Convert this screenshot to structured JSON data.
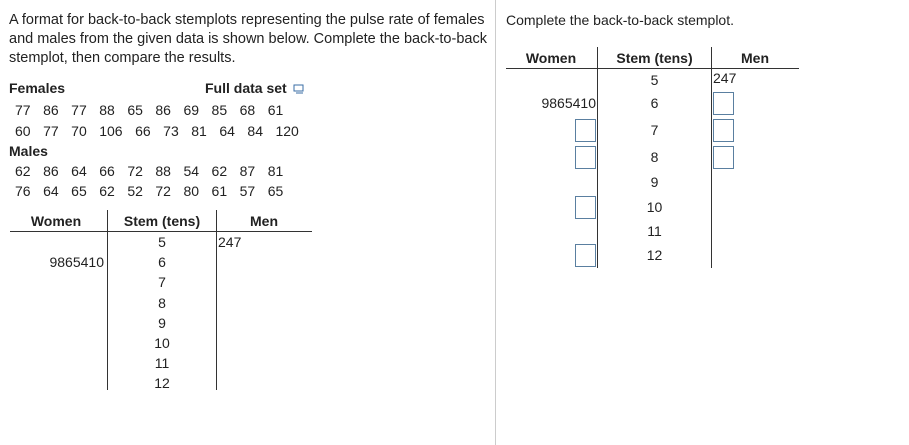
{
  "intro": "A format for back-to-back stemplots representing the pulse rate of females and males from the given data is shown below. Complete the back-to-back stemplot, then compare the results.",
  "females": {
    "label": "Females",
    "rows": [
      [
        77,
        86,
        77,
        88,
        65,
        86,
        69,
        85,
        68,
        61
      ],
      [
        60,
        77,
        70,
        106,
        66,
        73,
        81,
        64,
        84,
        120
      ]
    ]
  },
  "full_data_set": "Full data set",
  "males": {
    "label": "Males",
    "rows": [
      [
        62,
        86,
        64,
        66,
        72,
        88,
        54,
        62,
        87,
        81
      ],
      [
        76,
        64,
        65,
        62,
        52,
        72,
        80,
        61,
        57,
        65
      ]
    ]
  },
  "example_stemplot": {
    "headers": [
      "Women",
      "Stem (tens)",
      "Men"
    ],
    "rows": [
      {
        "stem": 5,
        "men": "247"
      },
      {
        "stem": 6,
        "women": "9865410"
      },
      {
        "stem": 7
      },
      {
        "stem": 8
      },
      {
        "stem": 9
      },
      {
        "stem": 10
      },
      {
        "stem": 11
      },
      {
        "stem": 12
      }
    ]
  },
  "task": {
    "instruction": "Complete the back-to-back stemplot.",
    "headers": [
      "Women",
      "Stem (tens)",
      "Men"
    ],
    "rows": [
      {
        "stem": 5,
        "men": "247"
      },
      {
        "stem": 6,
        "women": "9865410"
      },
      {
        "stem": 7
      },
      {
        "stem": 8
      },
      {
        "stem": 9
      },
      {
        "stem": 10
      },
      {
        "stem": 11
      },
      {
        "stem": 12
      }
    ]
  }
}
